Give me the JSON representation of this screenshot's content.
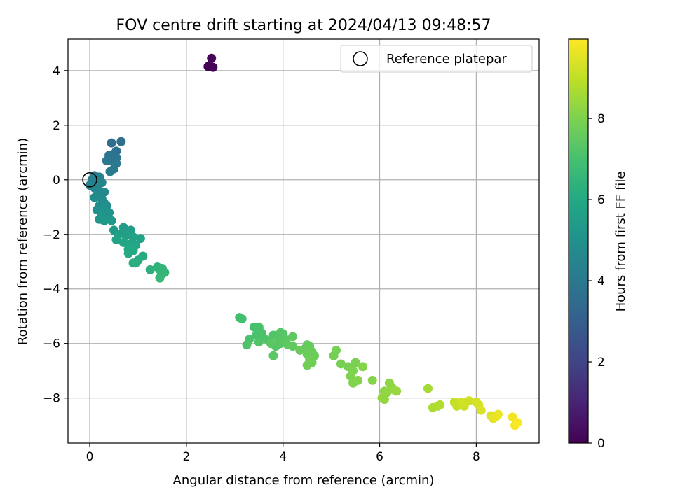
{
  "chart_data": {
    "type": "scatter",
    "title": "FOV centre drift starting at 2024/04/13 09:48:57",
    "xlabel": "Angular distance from reference (arcmin)",
    "ylabel": "Rotation from reference (arcmin)",
    "xlim": [
      -0.45,
      9.3
    ],
    "ylim": [
      -9.65,
      5.15
    ],
    "xticks": [
      0,
      2,
      4,
      6,
      8
    ],
    "yticks": [
      -8,
      -6,
      -4,
      -2,
      0,
      2,
      4
    ],
    "grid": true,
    "legend": {
      "placement": "top-right",
      "entries": [
        "Reference platepar"
      ]
    },
    "reference_point": {
      "x": 0,
      "y": 0
    },
    "colorbar": {
      "label": "Hours from first FF file",
      "range": [
        0,
        9.95
      ],
      "ticks": [
        0,
        2,
        4,
        6,
        8
      ],
      "colormap": "viridis"
    },
    "points": [
      {
        "x": 2.45,
        "y": 4.15,
        "c": 0.0
      },
      {
        "x": 2.5,
        "y": 4.15,
        "c": 0.05
      },
      {
        "x": 2.55,
        "y": 4.12,
        "c": 0.1
      },
      {
        "x": 2.52,
        "y": 4.45,
        "c": 0.15
      },
      {
        "x": 0.45,
        "y": 1.35,
        "c": 3.6
      },
      {
        "x": 0.65,
        "y": 1.4,
        "c": 3.65
      },
      {
        "x": 0.55,
        "y": 1.05,
        "c": 3.7
      },
      {
        "x": 0.5,
        "y": 0.95,
        "c": 3.75
      },
      {
        "x": 0.4,
        "y": 0.9,
        "c": 3.8
      },
      {
        "x": 0.55,
        "y": 0.8,
        "c": 3.85
      },
      {
        "x": 0.45,
        "y": 0.7,
        "c": 3.9
      },
      {
        "x": 0.35,
        "y": 0.7,
        "c": 3.95
      },
      {
        "x": 0.55,
        "y": 0.6,
        "c": 4.0
      },
      {
        "x": 0.5,
        "y": 0.4,
        "c": 4.05
      },
      {
        "x": 0.42,
        "y": 0.3,
        "c": 4.1
      },
      {
        "x": 0.1,
        "y": 0.15,
        "c": 4.2
      },
      {
        "x": 0.2,
        "y": 0.1,
        "c": 4.25
      },
      {
        "x": 0.05,
        "y": 0.0,
        "c": 4.3
      },
      {
        "x": 0.15,
        "y": -0.05,
        "c": 4.35
      },
      {
        "x": 0.0,
        "y": -0.2,
        "c": 4.4
      },
      {
        "x": 0.25,
        "y": -0.1,
        "c": 4.45
      },
      {
        "x": 0.1,
        "y": -0.3,
        "c": 4.5
      },
      {
        "x": 0.2,
        "y": -0.4,
        "c": 4.55
      },
      {
        "x": 0.3,
        "y": -0.45,
        "c": 4.6
      },
      {
        "x": 0.15,
        "y": -0.6,
        "c": 4.65
      },
      {
        "x": 0.25,
        "y": -0.7,
        "c": 4.7
      },
      {
        "x": 0.1,
        "y": -0.65,
        "c": 4.75
      },
      {
        "x": 0.3,
        "y": -0.85,
        "c": 4.8
      },
      {
        "x": 0.2,
        "y": -0.95,
        "c": 4.85
      },
      {
        "x": 0.35,
        "y": -0.95,
        "c": 4.9
      },
      {
        "x": 0.15,
        "y": -1.1,
        "c": 4.95
      },
      {
        "x": 0.3,
        "y": -1.15,
        "c": 5.0
      },
      {
        "x": 0.4,
        "y": -1.2,
        "c": 5.05
      },
      {
        "x": 0.25,
        "y": -1.3,
        "c": 5.1
      },
      {
        "x": 0.35,
        "y": -1.4,
        "c": 5.15
      },
      {
        "x": 0.2,
        "y": -1.45,
        "c": 5.2
      },
      {
        "x": 0.3,
        "y": -1.5,
        "c": 5.25
      },
      {
        "x": 0.45,
        "y": -1.5,
        "c": 5.3
      },
      {
        "x": 0.5,
        "y": -1.85,
        "c": 5.4
      },
      {
        "x": 0.7,
        "y": -1.75,
        "c": 5.45
      },
      {
        "x": 0.85,
        "y": -1.85,
        "c": 5.5
      },
      {
        "x": 0.6,
        "y": -2.0,
        "c": 5.55
      },
      {
        "x": 0.75,
        "y": -2.05,
        "c": 5.6
      },
      {
        "x": 0.9,
        "y": -2.1,
        "c": 5.65
      },
      {
        "x": 1.05,
        "y": -2.15,
        "c": 5.7
      },
      {
        "x": 0.55,
        "y": -2.2,
        "c": 5.75
      },
      {
        "x": 0.7,
        "y": -2.3,
        "c": 5.8
      },
      {
        "x": 0.85,
        "y": -2.35,
        "c": 5.85
      },
      {
        "x": 0.95,
        "y": -2.4,
        "c": 5.9
      },
      {
        "x": 0.8,
        "y": -2.55,
        "c": 5.95
      },
      {
        "x": 0.9,
        "y": -2.6,
        "c": 6.0
      },
      {
        "x": 0.8,
        "y": -2.7,
        "c": 6.05
      },
      {
        "x": 1.1,
        "y": -2.8,
        "c": 6.1
      },
      {
        "x": 1.0,
        "y": -2.95,
        "c": 6.15
      },
      {
        "x": 0.9,
        "y": -3.05,
        "c": 6.2
      },
      {
        "x": 0.95,
        "y": -3.05,
        "c": 6.25
      },
      {
        "x": 1.25,
        "y": -3.3,
        "c": 6.3
      },
      {
        "x": 1.4,
        "y": -3.2,
        "c": 6.35
      },
      {
        "x": 1.45,
        "y": -3.3,
        "c": 6.4
      },
      {
        "x": 1.5,
        "y": -3.25,
        "c": 6.45
      },
      {
        "x": 1.55,
        "y": -3.4,
        "c": 6.5
      },
      {
        "x": 1.5,
        "y": -3.45,
        "c": 6.55
      },
      {
        "x": 1.45,
        "y": -3.6,
        "c": 6.6
      },
      {
        "x": 3.1,
        "y": -5.05,
        "c": 6.9
      },
      {
        "x": 3.15,
        "y": -5.1,
        "c": 6.95
      },
      {
        "x": 3.4,
        "y": -5.4,
        "c": 7.0
      },
      {
        "x": 3.5,
        "y": -5.4,
        "c": 7.02
      },
      {
        "x": 3.3,
        "y": -5.85,
        "c": 7.05
      },
      {
        "x": 3.45,
        "y": -5.7,
        "c": 7.08
      },
      {
        "x": 3.55,
        "y": -5.6,
        "c": 7.1
      },
      {
        "x": 3.6,
        "y": -5.8,
        "c": 7.12
      },
      {
        "x": 3.7,
        "y": -5.9,
        "c": 7.15
      },
      {
        "x": 3.25,
        "y": -6.05,
        "c": 7.18
      },
      {
        "x": 3.5,
        "y": -5.95,
        "c": 7.2
      },
      {
        "x": 3.8,
        "y": -5.7,
        "c": 7.22
      },
      {
        "x": 3.85,
        "y": -6.1,
        "c": 7.25
      },
      {
        "x": 3.9,
        "y": -5.8,
        "c": 7.28
      },
      {
        "x": 3.95,
        "y": -5.6,
        "c": 7.3
      },
      {
        "x": 4.0,
        "y": -5.65,
        "c": 7.32
      },
      {
        "x": 3.95,
        "y": -6.0,
        "c": 7.35
      },
      {
        "x": 4.05,
        "y": -5.85,
        "c": 7.38
      },
      {
        "x": 3.75,
        "y": -6.0,
        "c": 7.4
      },
      {
        "x": 3.8,
        "y": -6.45,
        "c": 7.42
      },
      {
        "x": 4.1,
        "y": -6.05,
        "c": 7.45
      },
      {
        "x": 4.2,
        "y": -5.75,
        "c": 7.48
      },
      {
        "x": 4.2,
        "y": -6.1,
        "c": 7.5
      },
      {
        "x": 4.5,
        "y": -6.05,
        "c": 7.55
      },
      {
        "x": 4.55,
        "y": -6.1,
        "c": 7.58
      },
      {
        "x": 4.45,
        "y": -6.2,
        "c": 7.6
      },
      {
        "x": 4.35,
        "y": -6.25,
        "c": 7.62
      },
      {
        "x": 4.6,
        "y": -6.3,
        "c": 7.65
      },
      {
        "x": 4.5,
        "y": -6.4,
        "c": 7.68
      },
      {
        "x": 4.65,
        "y": -6.45,
        "c": 7.7
      },
      {
        "x": 4.55,
        "y": -6.6,
        "c": 7.72
      },
      {
        "x": 4.5,
        "y": -6.8,
        "c": 7.75
      },
      {
        "x": 4.6,
        "y": -6.7,
        "c": 7.78
      },
      {
        "x": 5.05,
        "y": -6.45,
        "c": 7.85
      },
      {
        "x": 5.1,
        "y": -6.25,
        "c": 7.88
      },
      {
        "x": 5.2,
        "y": -6.75,
        "c": 7.9
      },
      {
        "x": 5.35,
        "y": -6.85,
        "c": 7.93
      },
      {
        "x": 5.5,
        "y": -6.7,
        "c": 7.96
      },
      {
        "x": 5.45,
        "y": -7.0,
        "c": 8.0
      },
      {
        "x": 5.4,
        "y": -7.2,
        "c": 8.03
      },
      {
        "x": 5.45,
        "y": -7.45,
        "c": 8.06
      },
      {
        "x": 5.55,
        "y": -7.35,
        "c": 8.09
      },
      {
        "x": 5.65,
        "y": -6.85,
        "c": 8.12
      },
      {
        "x": 5.85,
        "y": -7.35,
        "c": 8.15
      },
      {
        "x": 6.1,
        "y": -7.75,
        "c": 8.2
      },
      {
        "x": 6.2,
        "y": -7.45,
        "c": 8.23
      },
      {
        "x": 6.25,
        "y": -7.6,
        "c": 8.26
      },
      {
        "x": 6.15,
        "y": -7.8,
        "c": 8.29
      },
      {
        "x": 6.05,
        "y": -8.0,
        "c": 8.32
      },
      {
        "x": 6.1,
        "y": -8.05,
        "c": 8.35
      },
      {
        "x": 6.3,
        "y": -7.7,
        "c": 8.38
      },
      {
        "x": 6.35,
        "y": -7.75,
        "c": 8.41
      },
      {
        "x": 7.0,
        "y": -7.65,
        "c": 8.6
      },
      {
        "x": 7.1,
        "y": -8.35,
        "c": 8.7
      },
      {
        "x": 7.2,
        "y": -8.3,
        "c": 8.75
      },
      {
        "x": 7.25,
        "y": -8.25,
        "c": 8.8
      },
      {
        "x": 7.55,
        "y": -8.15,
        "c": 9.0
      },
      {
        "x": 7.65,
        "y": -8.2,
        "c": 9.05
      },
      {
        "x": 7.6,
        "y": -8.3,
        "c": 9.1
      },
      {
        "x": 7.75,
        "y": -8.3,
        "c": 9.15
      },
      {
        "x": 7.85,
        "y": -8.1,
        "c": 9.2
      },
      {
        "x": 7.7,
        "y": -8.15,
        "c": 9.25
      },
      {
        "x": 8.0,
        "y": -8.15,
        "c": 9.3
      },
      {
        "x": 8.05,
        "y": -8.25,
        "c": 9.35
      },
      {
        "x": 8.1,
        "y": -8.45,
        "c": 9.4
      },
      {
        "x": 8.3,
        "y": -8.65,
        "c": 9.5
      },
      {
        "x": 8.35,
        "y": -8.75,
        "c": 9.55
      },
      {
        "x": 8.4,
        "y": -8.7,
        "c": 9.6
      },
      {
        "x": 8.45,
        "y": -8.6,
        "c": 9.65
      },
      {
        "x": 8.75,
        "y": -8.7,
        "c": 9.75
      },
      {
        "x": 8.8,
        "y": -9.0,
        "c": 9.8
      },
      {
        "x": 8.85,
        "y": -8.9,
        "c": 9.9
      }
    ]
  }
}
